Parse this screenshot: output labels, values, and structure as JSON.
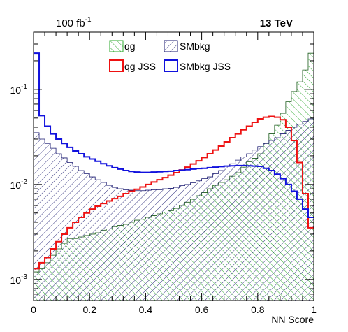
{
  "chart_data": {
    "type": "histogram",
    "lumi_label": "100 fb",
    "lumi_sup": "-1",
    "energy_label": "13 TeV",
    "xlabel": "NN Score",
    "ylabel": "",
    "xlim": [
      0,
      1
    ],
    "ylim": [
      0.0006,
      0.4
    ],
    "yscale": "log",
    "x_ticks": [
      "0",
      "0.2",
      "0.4",
      "0.6",
      "0.8",
      "1"
    ],
    "y_ticks": [
      {
        "base": "10",
        "exp": "-3",
        "value": 0.001
      },
      {
        "base": "10",
        "exp": "-2",
        "value": 0.01
      },
      {
        "base": "10",
        "exp": "-1",
        "value": 0.1
      }
    ],
    "legend": {
      "position": "top-center",
      "entries": [
        {
          "label": "qg",
          "style": "hatch",
          "color": "#2eaa2e"
        },
        {
          "label": "SMbkg",
          "style": "hatch",
          "color": "#1a1a70"
        },
        {
          "label": "qg JSS",
          "style": "line",
          "color": "#ee1111"
        },
        {
          "label": "SMbkg JSS",
          "style": "line",
          "color": "#1111dd"
        }
      ]
    },
    "bins": {
      "start": 0,
      "end": 1,
      "count": 50
    },
    "series": [
      {
        "name": "qg",
        "style": "hatch",
        "color": "#2eaa2e",
        "values": [
          0.0012,
          0.0013,
          0.0015,
          0.0018,
          0.0021,
          0.0024,
          0.0027,
          0.0027,
          0.0028,
          0.0029,
          0.003,
          0.0031,
          0.0033,
          0.0034,
          0.0036,
          0.0037,
          0.0038,
          0.004,
          0.0042,
          0.0043,
          0.0045,
          0.0047,
          0.0049,
          0.0051,
          0.0053,
          0.0056,
          0.006,
          0.0065,
          0.007,
          0.0076,
          0.0082,
          0.009,
          0.0098,
          0.0105,
          0.0112,
          0.0122,
          0.0133,
          0.0152,
          0.0173,
          0.0188,
          0.021,
          0.027,
          0.034,
          0.042,
          0.056,
          0.074,
          0.095,
          0.12,
          0.16,
          0.24
        ]
      },
      {
        "name": "SMbkg",
        "style": "hatch",
        "color": "#1a1a70",
        "values": [
          0.035,
          0.03,
          0.027,
          0.024,
          0.021,
          0.019,
          0.017,
          0.0155,
          0.014,
          0.013,
          0.012,
          0.0112,
          0.0105,
          0.0098,
          0.0093,
          0.009,
          0.0088,
          0.0087,
          0.0086,
          0.0086,
          0.0087,
          0.0088,
          0.0088,
          0.009,
          0.0091,
          0.0093,
          0.0097,
          0.01,
          0.0104,
          0.0109,
          0.0115,
          0.012,
          0.013,
          0.014,
          0.0155,
          0.0165,
          0.018,
          0.0195,
          0.021,
          0.023,
          0.025,
          0.027,
          0.029,
          0.031,
          0.034,
          0.037,
          0.04,
          0.043,
          0.046,
          0.049
        ]
      },
      {
        "name": "qg JSS",
        "style": "line",
        "color": "#ee1111",
        "values": [
          0.0013,
          0.0015,
          0.0017,
          0.0021,
          0.0025,
          0.003,
          0.0035,
          0.004,
          0.0045,
          0.005,
          0.0055,
          0.0059,
          0.0063,
          0.0067,
          0.0071,
          0.0075,
          0.008,
          0.0085,
          0.0089,
          0.0094,
          0.01,
          0.0106,
          0.0112,
          0.0118,
          0.0125,
          0.0133,
          0.0142,
          0.0152,
          0.0164,
          0.0177,
          0.0192,
          0.021,
          0.023,
          0.0253,
          0.028,
          0.031,
          0.034,
          0.0375,
          0.041,
          0.045,
          0.049,
          0.051,
          0.052,
          0.051,
          0.048,
          0.04,
          0.029,
          0.017,
          0.008,
          0.0035
        ]
      },
      {
        "name": "SMbkg JSS",
        "style": "line",
        "color": "#1111dd",
        "values": [
          0.24,
          0.053,
          0.041,
          0.034,
          0.03,
          0.027,
          0.0245,
          0.0225,
          0.021,
          0.0195,
          0.0185,
          0.0175,
          0.0165,
          0.0157,
          0.015,
          0.0145,
          0.014,
          0.0137,
          0.0135,
          0.0134,
          0.0134,
          0.0135,
          0.0136,
          0.0137,
          0.0138,
          0.014,
          0.0141,
          0.0143,
          0.0145,
          0.0147,
          0.0148,
          0.015,
          0.0152,
          0.0154,
          0.0156,
          0.0157,
          0.0158,
          0.0158,
          0.0157,
          0.0156,
          0.0155,
          0.0148,
          0.014,
          0.0128,
          0.0115,
          0.01,
          0.0085,
          0.007,
          0.0055,
          0.0045
        ]
      }
    ]
  }
}
